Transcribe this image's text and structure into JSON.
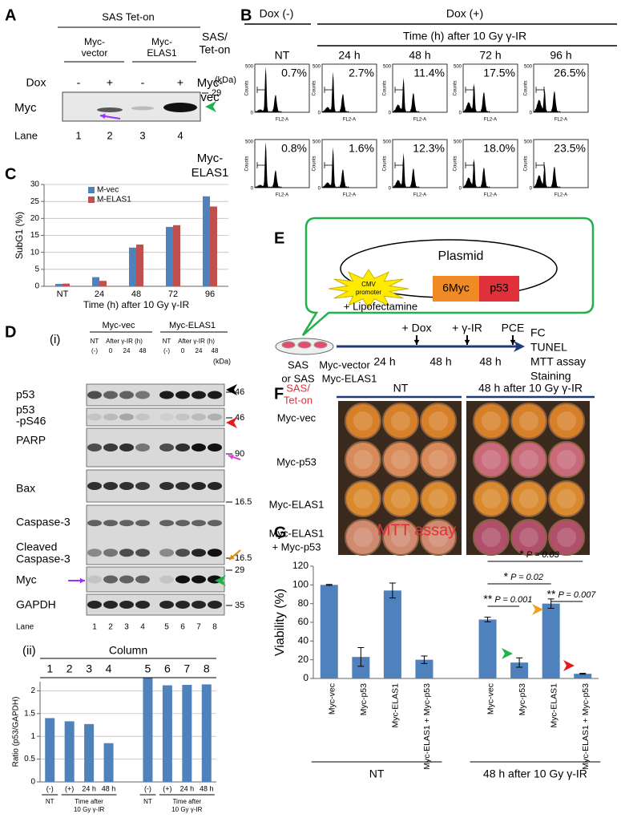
{
  "panel_a": {
    "label": "A",
    "title": "SAS Tet-on",
    "groups": [
      [
        "Myc-",
        "vector"
      ],
      [
        "Myc-",
        "ELAS1"
      ]
    ],
    "dox": "Dox",
    "dox_signs": [
      "-",
      "+",
      "-",
      "+"
    ],
    "kda": "(kDa)",
    "marker": "29",
    "row": "Myc",
    "lane": "Lane",
    "lanes": [
      "1",
      "2",
      "3",
      "4"
    ]
  },
  "panel_b": {
    "label": "B",
    "dox_minus": "Dox (-)",
    "dox_plus": "Dox (+)",
    "cell": [
      "SAS/",
      "Tet-on"
    ],
    "time": "Time (h) after 10 Gy γ-IR",
    "columns": [
      "NT",
      "24 h",
      "48 h",
      "72 h",
      "96 h"
    ],
    "rows": [
      {
        "name": [
          "Myc-",
          "vec"
        ],
        "percents": [
          "0.7%",
          "2.7%",
          "11.4%",
          "17.5%",
          "26.5%"
        ]
      },
      {
        "name": [
          "Myc-",
          "ELAS1"
        ],
        "percents": [
          "0.8%",
          "1.6%",
          "12.3%",
          "18.0%",
          "23.5%"
        ]
      }
    ],
    "axis": {
      "y": "Counts",
      "ymax": "500",
      "zero": "0",
      "x": "FL2-A"
    }
  },
  "panel_c": {
    "label": "C"
  },
  "panel_d": {
    "label": "D",
    "sub_i": "(i)",
    "groups": [
      "Myc-vec",
      "Myc-ELAS1"
    ],
    "nt": "NT",
    "after": "After γ-IR (h)",
    "conditions": [
      "(-)",
      "0",
      "24",
      "48"
    ],
    "kda": "(kDa)",
    "blots": [
      {
        "name": [
          "p53"
        ],
        "marker": "46"
      },
      {
        "name": [
          "p53",
          "-pS46"
        ],
        "marker": "46"
      },
      {
        "name": [
          "PARP"
        ],
        "marker": "90"
      },
      {
        "name": [
          "Bax"
        ],
        "marker": "16.5"
      },
      {
        "name": [
          "Caspase-3",
          "Cleaved",
          "Caspase-3"
        ],
        "marker": "16.5"
      },
      {
        "name": [
          "Myc"
        ],
        "marker": "29"
      },
      {
        "name": [
          "GAPDH"
        ],
        "marker": "35"
      }
    ],
    "lane": "Lane",
    "lanes": [
      "1",
      "2",
      "3",
      "4",
      "5",
      "6",
      "7",
      "8"
    ],
    "sub_ii": "(ii)",
    "column": "Column",
    "columns": [
      "1",
      "2",
      "3",
      "4",
      "5",
      "6",
      "7",
      "8"
    ]
  },
  "panel_e": {
    "label": "E",
    "plasmid": "Plasmid",
    "promoter": [
      "CMV",
      "promoter"
    ],
    "genes": [
      "6Myc",
      "p53"
    ],
    "lipofectamine": "+ Lipofectamine",
    "cells": [
      "SAS",
      "or SAS"
    ],
    "vectors": [
      "Myc-vector",
      "Myc-ELAS1"
    ],
    "steps": [
      "+ Dox",
      "+ γ-IR",
      "PCE"
    ],
    "times": [
      "24 h",
      "48 h",
      "48 h"
    ],
    "readouts": [
      "FC",
      "TUNEL",
      "MTT assay",
      "Staining"
    ]
  },
  "panel_f": {
    "label": "F",
    "cell": [
      "SAS/",
      "Tet-on"
    ],
    "columns": [
      "NT",
      "48 h after 10 Gy γ-IR"
    ],
    "rows": [
      [
        "Myc-vec"
      ],
      [
        "Myc-p53"
      ],
      [
        "Myc-ELAS1"
      ],
      [
        "Myc-ELAS1",
        "+ Myc-p53"
      ]
    ]
  },
  "panel_g": {
    "label": "G"
  },
  "chart_data": [
    {
      "type": "bar",
      "ylabel": "SubG1 (%)",
      "xlabel": "Time (h) after 10 Gy γ-IR",
      "categories": [
        "NT",
        "24",
        "48",
        "72",
        "96"
      ],
      "series": [
        {
          "name": "M-vec",
          "color": "#4f81bd",
          "values": [
            0.7,
            2.7,
            11.4,
            17.5,
            26.5
          ]
        },
        {
          "name": "M-ELAS1",
          "color": "#c0504d",
          "values": [
            0.8,
            1.6,
            12.3,
            18.0,
            23.5
          ]
        }
      ],
      "ylim": [
        0,
        30
      ],
      "yticks": [
        0,
        5,
        10,
        15,
        20,
        25,
        30
      ],
      "grid": true,
      "legend": "upper left"
    },
    {
      "type": "bar",
      "ylabel": "Ratio (p53/GAPDH)",
      "categories": [
        "(-)",
        "(+)",
        "24 h",
        "48 h",
        null,
        "(-)",
        "(+)",
        "24 h",
        "48 h"
      ],
      "values": [
        1.4,
        1.33,
        1.27,
        0.85,
        null,
        2.28,
        2.12,
        2.13,
        2.14
      ],
      "color": "#4f81bd",
      "ylim": [
        0,
        2.2
      ],
      "yticks": [
        0,
        0.5,
        1,
        1.5,
        2
      ],
      "grid": true,
      "group_labels": [
        [
          "NT"
        ],
        [
          "Time after",
          "10 Gy γ-IR"
        ],
        [
          "NT"
        ],
        [
          "Time after",
          "10 Gy γ-IR"
        ]
      ]
    },
    {
      "type": "bar",
      "title": "MTT assay",
      "ylabel": "Viability (%)",
      "categories": [
        "Myc-vec",
        "Myc-p53",
        "Myc-ELAS1",
        "Myc-ELAS1 + Myc-p53",
        null,
        "Myc-vec",
        "Myc-p53",
        "Myc-ELAS1",
        "Myc-ELAS1 + Myc-p53"
      ],
      "values": [
        100,
        23,
        94,
        20,
        null,
        63,
        17,
        80,
        5
      ],
      "errors": [
        0.5,
        10,
        8,
        4,
        null,
        2.5,
        5,
        5,
        0.5
      ],
      "color": "#4f81bd",
      "ylim": [
        0,
        120
      ],
      "yticks": [
        0,
        20,
        40,
        60,
        80,
        100,
        120
      ],
      "grid": false,
      "group_labels": [
        "NT",
        "48 h after 10 Gy γ-IR"
      ],
      "annotations": [
        {
          "stars": "*",
          "p": "P = 0.03"
        },
        {
          "stars": "*",
          "p": "P = 0.02"
        },
        {
          "stars": "**",
          "p": "P = 0.001"
        },
        {
          "stars": "**",
          "p": "P = 0.007"
        }
      ]
    }
  ]
}
